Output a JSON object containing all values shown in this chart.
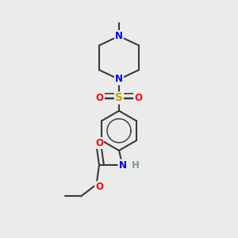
{
  "background_color": "#ebebeb",
  "bond_color": "#3a3a3a",
  "figsize": [
    3.0,
    3.0
  ],
  "dpi": 100,
  "atom_colors": {
    "N": "#0000ee",
    "O": "#ff0000",
    "S": "#bbaa00",
    "C": "#3a3a3a",
    "H": "#7a9a9a"
  },
  "font_size": 8.5,
  "bond_width": 1.5
}
